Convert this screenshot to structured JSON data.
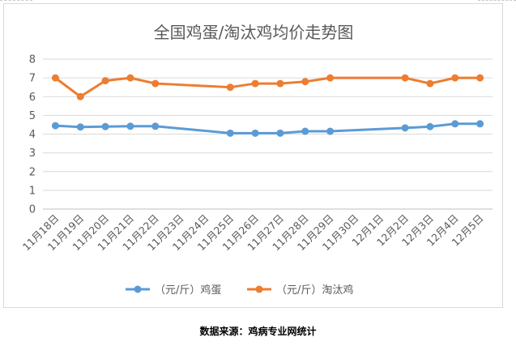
{
  "chart_data": {
    "type": "line",
    "title": "全国鸡蛋/淘汰鸡均价走势图",
    "categories": [
      "11月18日",
      "11月19日",
      "11月20日",
      "11月21日",
      "11月22日",
      "11月23日",
      "11月24日",
      "11月25日",
      "11月26日",
      "11月27日",
      "11月28日",
      "11月29日",
      "11月30日",
      "12月1日",
      "12月2日",
      "12月3日",
      "12月4日",
      "12月5日"
    ],
    "ylim": [
      0,
      8
    ],
    "yticks": [
      0,
      1,
      2,
      3,
      4,
      5,
      6,
      7,
      8
    ],
    "grid": true,
    "legend_position": "bottom",
    "series": [
      {
        "name": "（元/斤）鸡蛋",
        "color": "#5b9bd5",
        "values": [
          4.45,
          4.38,
          4.4,
          4.42,
          4.42,
          null,
          null,
          4.05,
          4.05,
          4.05,
          4.15,
          4.15,
          null,
          null,
          4.33,
          4.4,
          4.55,
          4.55
        ]
      },
      {
        "name": "（元/斤）淘汰鸡",
        "color": "#ed7d31",
        "values": [
          7.0,
          6.0,
          6.85,
          7.0,
          6.7,
          null,
          null,
          6.5,
          6.7,
          6.7,
          6.8,
          7.0,
          null,
          null,
          7.0,
          6.7,
          7.0,
          7.0
        ]
      }
    ]
  },
  "source_note": "数据来源：鸡病专业网统计"
}
